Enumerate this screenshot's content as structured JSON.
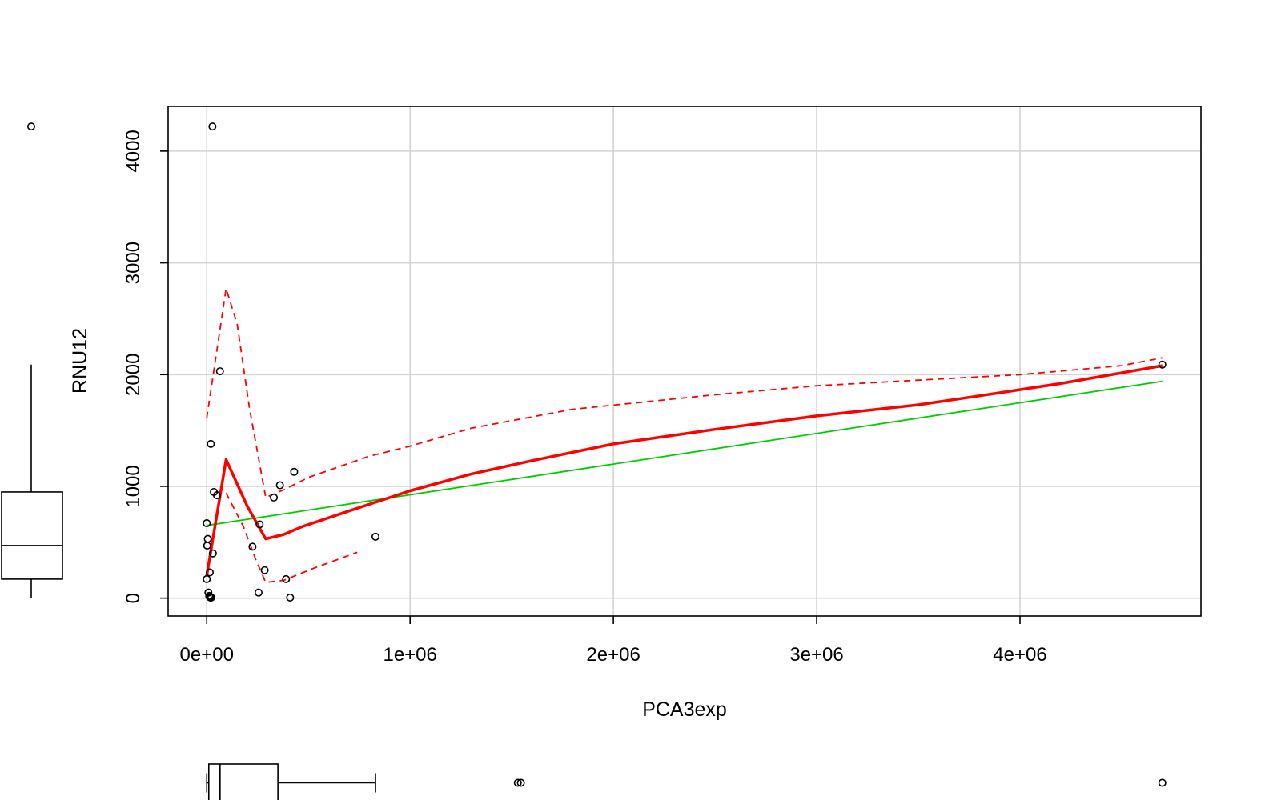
{
  "chart_data": {
    "type": "scatter",
    "title": "",
    "xlabel": "PCA3exp",
    "ylabel": "RNU12",
    "xlim": [
      -190000,
      4890000
    ],
    "ylim": [
      -160,
      4400
    ],
    "x_ticks": [
      {
        "value": 0,
        "label": "0e+00"
      },
      {
        "value": 1000000,
        "label": "1e+06"
      },
      {
        "value": 2000000,
        "label": "2e+06"
      },
      {
        "value": 3000000,
        "label": "3e+06"
      },
      {
        "value": 4000000,
        "label": "4e+06"
      }
    ],
    "y_ticks": [
      {
        "value": 0,
        "label": "0"
      },
      {
        "value": 1000,
        "label": "1000"
      },
      {
        "value": 2000,
        "label": "2000"
      },
      {
        "value": 3000,
        "label": "3000"
      },
      {
        "value": 4000,
        "label": "4000"
      }
    ],
    "grid": true,
    "colors": {
      "points": "#000000",
      "smooth": "#ff0000",
      "fit": "#00cc00",
      "grid": "#d3d3d3"
    },
    "points": [
      {
        "x": 28000,
        "y": 4220
      },
      {
        "x": 65000,
        "y": 2030
      },
      {
        "x": 20000,
        "y": 1380
      },
      {
        "x": 430000,
        "y": 1130
      },
      {
        "x": 360000,
        "y": 1010
      },
      {
        "x": 35000,
        "y": 950
      },
      {
        "x": 50000,
        "y": 920
      },
      {
        "x": 330000,
        "y": 900
      },
      {
        "x": 0,
        "y": 670
      },
      {
        "x": 260000,
        "y": 660
      },
      {
        "x": 5000,
        "y": 530
      },
      {
        "x": 830000,
        "y": 550
      },
      {
        "x": 2000,
        "y": 470
      },
      {
        "x": 225000,
        "y": 460
      },
      {
        "x": 30000,
        "y": 400
      },
      {
        "x": 285000,
        "y": 250
      },
      {
        "x": 15000,
        "y": 230
      },
      {
        "x": 390000,
        "y": 170
      },
      {
        "x": 0,
        "y": 170
      },
      {
        "x": 255000,
        "y": 50
      },
      {
        "x": 8000,
        "y": 50
      },
      {
        "x": 12000,
        "y": 20
      },
      {
        "x": 14000,
        "y": 10
      },
      {
        "x": 18000,
        "y": 5
      },
      {
        "x": 22000,
        "y": 5
      },
      {
        "x": 410000,
        "y": 5
      },
      {
        "x": 4700000,
        "y": 2090
      }
    ],
    "lines": [
      {
        "kind": "linear-fit",
        "style": "solid",
        "color": "#00cc00",
        "points": [
          [
            0,
            650
          ],
          [
            4700000,
            1940
          ]
        ]
      },
      {
        "kind": "smooth",
        "style": "solid",
        "color": "#ff0000",
        "points": [
          [
            0,
            200
          ],
          [
            95000,
            1240
          ],
          [
            200000,
            820
          ],
          [
            290000,
            530
          ],
          [
            380000,
            570
          ],
          [
            470000,
            640
          ],
          [
            700000,
            780
          ],
          [
            1000000,
            960
          ],
          [
            1300000,
            1110
          ],
          [
            1600000,
            1230
          ],
          [
            2000000,
            1380
          ],
          [
            2500000,
            1510
          ],
          [
            3000000,
            1630
          ],
          [
            3500000,
            1730
          ],
          [
            3800000,
            1810
          ],
          [
            4200000,
            1920
          ],
          [
            4700000,
            2080
          ]
        ]
      },
      {
        "kind": "smooth-upper",
        "style": "dashed",
        "color": "#ff0000",
        "points": [
          [
            0,
            1610
          ],
          [
            95000,
            2770
          ],
          [
            150000,
            2450
          ],
          [
            210000,
            1700
          ],
          [
            290000,
            900
          ],
          [
            380000,
            970
          ],
          [
            500000,
            1080
          ],
          [
            800000,
            1270
          ],
          [
            1000000,
            1360
          ],
          [
            1300000,
            1520
          ],
          [
            1800000,
            1690
          ],
          [
            2500000,
            1820
          ],
          [
            3000000,
            1900
          ],
          [
            3500000,
            1950
          ],
          [
            4000000,
            2000
          ],
          [
            4500000,
            2080
          ],
          [
            4700000,
            2150
          ]
        ]
      },
      {
        "kind": "smooth-lower",
        "style": "dashed",
        "color": "#ff0000",
        "points": [
          [
            95000,
            940
          ],
          [
            180000,
            640
          ],
          [
            240000,
            350
          ],
          [
            290000,
            140
          ],
          [
            380000,
            160
          ],
          [
            530000,
            270
          ],
          [
            740000,
            410
          ]
        ]
      }
    ],
    "marginal_boxplots": {
      "x": {
        "q1": 10000,
        "median": 65000,
        "q3": 350000,
        "whisker_low": 0,
        "whisker_high": 830000,
        "outliers": [
          1530000,
          1545000,
          4700000
        ]
      },
      "y": {
        "q1": 170,
        "median": 470,
        "q3": 950,
        "whisker_low": 0,
        "whisker_high": 2090,
        "outliers": [
          4220
        ]
      }
    }
  }
}
